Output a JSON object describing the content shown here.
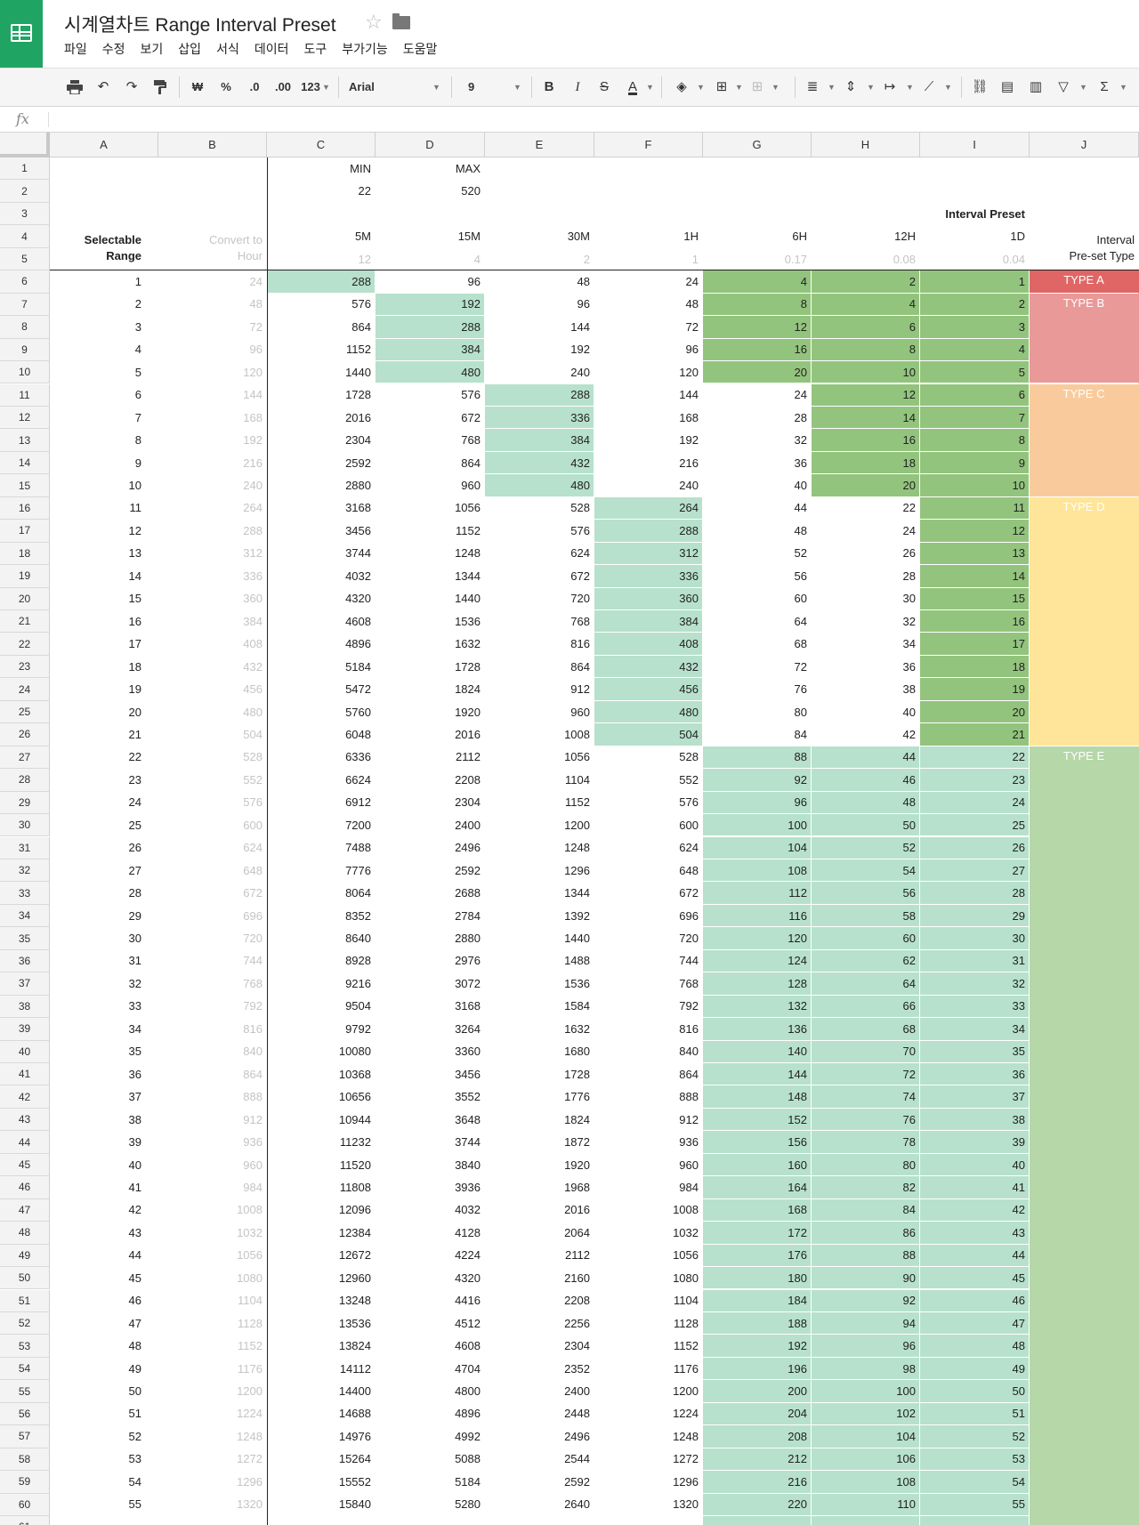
{
  "app": {
    "title": "시계열차트 Range Interval Preset",
    "menu": [
      "파일",
      "수정",
      "보기",
      "삽입",
      "서식",
      "데이터",
      "도구",
      "부가기능",
      "도움말"
    ]
  },
  "toolbar": {
    "currency": "₩",
    "percent": "%",
    "dec_decrease": ".0",
    "dec_increase": ".00",
    "more_formats": "123",
    "font": "Arial",
    "font_size": "9",
    "bold": "B",
    "italic": "I",
    "strike": "S",
    "text_color": "A",
    "sum": "Σ"
  },
  "formula_bar": {
    "fx": "fx",
    "value": ""
  },
  "columns": [
    "A",
    "B",
    "C",
    "D",
    "E",
    "F",
    "G",
    "H",
    "I",
    "J"
  ],
  "header_cells": {
    "C1": "MIN",
    "D1": "MAX",
    "C2": "22",
    "D2": "520",
    "I3": "Interval Preset",
    "A4": "Selectable",
    "A5": "Range",
    "B4": "Convert to",
    "B5": "Hour",
    "C4": "5M",
    "D4": "15M",
    "E4": "30M",
    "F4": "1H",
    "G4": "6H",
    "H4": "12H",
    "I4": "1D",
    "J4": "Interval",
    "J5": "Pre-set Type",
    "C5": "12",
    "D5": "4",
    "E5": "2",
    "F5": "1",
    "G5": "0.17",
    "H5": "0.08",
    "I5": "0.04"
  },
  "rows": [
    {
      "a": 1,
      "b": 24,
      "c": 288,
      "d": 96,
      "e": 48,
      "f": 24,
      "g": 4,
      "h": 2,
      "i": 1
    },
    {
      "a": 2,
      "b": 48,
      "c": 576,
      "d": 192,
      "e": 96,
      "f": 48,
      "g": 8,
      "h": 4,
      "i": 2
    },
    {
      "a": 3,
      "b": 72,
      "c": 864,
      "d": 288,
      "e": 144,
      "f": 72,
      "g": 12,
      "h": 6,
      "i": 3
    },
    {
      "a": 4,
      "b": 96,
      "c": 1152,
      "d": 384,
      "e": 192,
      "f": 96,
      "g": 16,
      "h": 8,
      "i": 4
    },
    {
      "a": 5,
      "b": 120,
      "c": 1440,
      "d": 480,
      "e": 240,
      "f": 120,
      "g": 20,
      "h": 10,
      "i": 5
    },
    {
      "a": 6,
      "b": 144,
      "c": 1728,
      "d": 576,
      "e": 288,
      "f": 144,
      "g": 24,
      "h": 12,
      "i": 6
    },
    {
      "a": 7,
      "b": 168,
      "c": 2016,
      "d": 672,
      "e": 336,
      "f": 168,
      "g": 28,
      "h": 14,
      "i": 7
    },
    {
      "a": 8,
      "b": 192,
      "c": 2304,
      "d": 768,
      "e": 384,
      "f": 192,
      "g": 32,
      "h": 16,
      "i": 8
    },
    {
      "a": 9,
      "b": 216,
      "c": 2592,
      "d": 864,
      "e": 432,
      "f": 216,
      "g": 36,
      "h": 18,
      "i": 9
    },
    {
      "a": 10,
      "b": 240,
      "c": 2880,
      "d": 960,
      "e": 480,
      "f": 240,
      "g": 40,
      "h": 20,
      "i": 10
    },
    {
      "a": 11,
      "b": 264,
      "c": 3168,
      "d": 1056,
      "e": 528,
      "f": 264,
      "g": 44,
      "h": 22,
      "i": 11
    },
    {
      "a": 12,
      "b": 288,
      "c": 3456,
      "d": 1152,
      "e": 576,
      "f": 288,
      "g": 48,
      "h": 24,
      "i": 12
    },
    {
      "a": 13,
      "b": 312,
      "c": 3744,
      "d": 1248,
      "e": 624,
      "f": 312,
      "g": 52,
      "h": 26,
      "i": 13
    },
    {
      "a": 14,
      "b": 336,
      "c": 4032,
      "d": 1344,
      "e": 672,
      "f": 336,
      "g": 56,
      "h": 28,
      "i": 14
    },
    {
      "a": 15,
      "b": 360,
      "c": 4320,
      "d": 1440,
      "e": 720,
      "f": 360,
      "g": 60,
      "h": 30,
      "i": 15
    },
    {
      "a": 16,
      "b": 384,
      "c": 4608,
      "d": 1536,
      "e": 768,
      "f": 384,
      "g": 64,
      "h": 32,
      "i": 16
    },
    {
      "a": 17,
      "b": 408,
      "c": 4896,
      "d": 1632,
      "e": 816,
      "f": 408,
      "g": 68,
      "h": 34,
      "i": 17
    },
    {
      "a": 18,
      "b": 432,
      "c": 5184,
      "d": 1728,
      "e": 864,
      "f": 432,
      "g": 72,
      "h": 36,
      "i": 18
    },
    {
      "a": 19,
      "b": 456,
      "c": 5472,
      "d": 1824,
      "e": 912,
      "f": 456,
      "g": 76,
      "h": 38,
      "i": 19
    },
    {
      "a": 20,
      "b": 480,
      "c": 5760,
      "d": 1920,
      "e": 960,
      "f": 480,
      "g": 80,
      "h": 40,
      "i": 20
    },
    {
      "a": 21,
      "b": 504,
      "c": 6048,
      "d": 2016,
      "e": 1008,
      "f": 504,
      "g": 84,
      "h": 42,
      "i": 21
    },
    {
      "a": 22,
      "b": 528,
      "c": 6336,
      "d": 2112,
      "e": 1056,
      "f": 528,
      "g": 88,
      "h": 44,
      "i": 22
    },
    {
      "a": 23,
      "b": 552,
      "c": 6624,
      "d": 2208,
      "e": 1104,
      "f": 552,
      "g": 92,
      "h": 46,
      "i": 23
    },
    {
      "a": 24,
      "b": 576,
      "c": 6912,
      "d": 2304,
      "e": 1152,
      "f": 576,
      "g": 96,
      "h": 48,
      "i": 24
    },
    {
      "a": 25,
      "b": 600,
      "c": 7200,
      "d": 2400,
      "e": 1200,
      "f": 600,
      "g": 100,
      "h": 50,
      "i": 25
    },
    {
      "a": 26,
      "b": 624,
      "c": 7488,
      "d": 2496,
      "e": 1248,
      "f": 624,
      "g": 104,
      "h": 52,
      "i": 26
    },
    {
      "a": 27,
      "b": 648,
      "c": 7776,
      "d": 2592,
      "e": 1296,
      "f": 648,
      "g": 108,
      "h": 54,
      "i": 27
    },
    {
      "a": 28,
      "b": 672,
      "c": 8064,
      "d": 2688,
      "e": 1344,
      "f": 672,
      "g": 112,
      "h": 56,
      "i": 28
    },
    {
      "a": 29,
      "b": 696,
      "c": 8352,
      "d": 2784,
      "e": 1392,
      "f": 696,
      "g": 116,
      "h": 58,
      "i": 29
    },
    {
      "a": 30,
      "b": 720,
      "c": 8640,
      "d": 2880,
      "e": 1440,
      "f": 720,
      "g": 120,
      "h": 60,
      "i": 30
    },
    {
      "a": 31,
      "b": 744,
      "c": 8928,
      "d": 2976,
      "e": 1488,
      "f": 744,
      "g": 124,
      "h": 62,
      "i": 31
    },
    {
      "a": 32,
      "b": 768,
      "c": 9216,
      "d": 3072,
      "e": 1536,
      "f": 768,
      "g": 128,
      "h": 64,
      "i": 32
    },
    {
      "a": 33,
      "b": 792,
      "c": 9504,
      "d": 3168,
      "e": 1584,
      "f": 792,
      "g": 132,
      "h": 66,
      "i": 33
    },
    {
      "a": 34,
      "b": 816,
      "c": 9792,
      "d": 3264,
      "e": 1632,
      "f": 816,
      "g": 136,
      "h": 68,
      "i": 34
    },
    {
      "a": 35,
      "b": 840,
      "c": 10080,
      "d": 3360,
      "e": 1680,
      "f": 840,
      "g": 140,
      "h": 70,
      "i": 35
    },
    {
      "a": 36,
      "b": 864,
      "c": 10368,
      "d": 3456,
      "e": 1728,
      "f": 864,
      "g": 144,
      "h": 72,
      "i": 36
    },
    {
      "a": 37,
      "b": 888,
      "c": 10656,
      "d": 3552,
      "e": 1776,
      "f": 888,
      "g": 148,
      "h": 74,
      "i": 37
    },
    {
      "a": 38,
      "b": 912,
      "c": 10944,
      "d": 3648,
      "e": 1824,
      "f": 912,
      "g": 152,
      "h": 76,
      "i": 38
    },
    {
      "a": 39,
      "b": 936,
      "c": 11232,
      "d": 3744,
      "e": 1872,
      "f": 936,
      "g": 156,
      "h": 78,
      "i": 39
    },
    {
      "a": 40,
      "b": 960,
      "c": 11520,
      "d": 3840,
      "e": 1920,
      "f": 960,
      "g": 160,
      "h": 80,
      "i": 40
    },
    {
      "a": 41,
      "b": 984,
      "c": 11808,
      "d": 3936,
      "e": 1968,
      "f": 984,
      "g": 164,
      "h": 82,
      "i": 41
    },
    {
      "a": 42,
      "b": 1008,
      "c": 12096,
      "d": 4032,
      "e": 2016,
      "f": 1008,
      "g": 168,
      "h": 84,
      "i": 42
    },
    {
      "a": 43,
      "b": 1032,
      "c": 12384,
      "d": 4128,
      "e": 2064,
      "f": 1032,
      "g": 172,
      "h": 86,
      "i": 43
    },
    {
      "a": 44,
      "b": 1056,
      "c": 12672,
      "d": 4224,
      "e": 2112,
      "f": 1056,
      "g": 176,
      "h": 88,
      "i": 44
    },
    {
      "a": 45,
      "b": 1080,
      "c": 12960,
      "d": 4320,
      "e": 2160,
      "f": 1080,
      "g": 180,
      "h": 90,
      "i": 45
    },
    {
      "a": 46,
      "b": 1104,
      "c": 13248,
      "d": 4416,
      "e": 2208,
      "f": 1104,
      "g": 184,
      "h": 92,
      "i": 46
    },
    {
      "a": 47,
      "b": 1128,
      "c": 13536,
      "d": 4512,
      "e": 2256,
      "f": 1128,
      "g": 188,
      "h": 94,
      "i": 47
    },
    {
      "a": 48,
      "b": 1152,
      "c": 13824,
      "d": 4608,
      "e": 2304,
      "f": 1152,
      "g": 192,
      "h": 96,
      "i": 48
    },
    {
      "a": 49,
      "b": 1176,
      "c": 14112,
      "d": 4704,
      "e": 2352,
      "f": 1176,
      "g": 196,
      "h": 98,
      "i": 49
    },
    {
      "a": 50,
      "b": 1200,
      "c": 14400,
      "d": 4800,
      "e": 2400,
      "f": 1200,
      "g": 200,
      "h": 100,
      "i": 50
    },
    {
      "a": 51,
      "b": 1224,
      "c": 14688,
      "d": 4896,
      "e": 2448,
      "f": 1224,
      "g": 204,
      "h": 102,
      "i": 51
    },
    {
      "a": 52,
      "b": 1248,
      "c": 14976,
      "d": 4992,
      "e": 2496,
      "f": 1248,
      "g": 208,
      "h": 104,
      "i": 52
    },
    {
      "a": 53,
      "b": 1272,
      "c": 15264,
      "d": 5088,
      "e": 2544,
      "f": 1272,
      "g": 212,
      "h": 106,
      "i": 53
    },
    {
      "a": 54,
      "b": 1296,
      "c": 15552,
      "d": 5184,
      "e": 2592,
      "f": 1296,
      "g": 216,
      "h": 108,
      "i": 54
    },
    {
      "a": 55,
      "b": 1320,
      "c": 15840,
      "d": 5280,
      "e": 2640,
      "f": 1320,
      "g": 220,
      "h": 110,
      "i": 55
    }
  ],
  "types": [
    {
      "label": "TYPE A",
      "from": 6,
      "to": 6,
      "color": "#e06666"
    },
    {
      "label": "TYPE B",
      "from": 7,
      "to": 10,
      "color": "#ea9999"
    },
    {
      "label": "TYPE C",
      "from": 11,
      "to": 15,
      "color": "#f9cb9c"
    },
    {
      "label": "TYPE D",
      "from": 16,
      "to": 26,
      "color": "#ffe599"
    },
    {
      "label": "TYPE E",
      "from": 27,
      "to": 61,
      "color": "#b6d7a8"
    }
  ],
  "highlight_colors": {
    "light": "#b7e1cd",
    "dark": "#93c47d"
  }
}
